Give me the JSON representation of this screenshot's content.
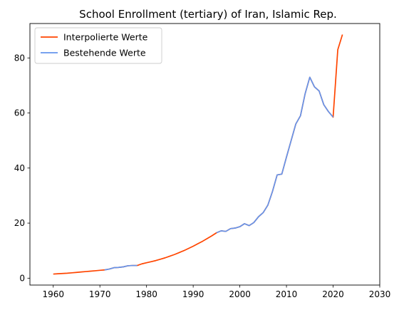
{
  "chart_data": {
    "type": "line",
    "title": "School Enrollment (tertiary) of Iran, Islamic Rep.",
    "xlabel": "",
    "ylabel": "",
    "xlim": [
      1955,
      2030
    ],
    "ylim": [
      -2.5,
      92.5
    ],
    "xticks": [
      1960,
      1970,
      1980,
      1990,
      2000,
      2010,
      2020,
      2030
    ],
    "yticks": [
      0,
      20,
      40,
      60,
      80
    ],
    "grid": false,
    "legend_position": "top-left",
    "series": [
      {
        "name": "Interpolierte Werte",
        "color": "#ff4500",
        "x": [
          1960,
          1961,
          1962,
          1963,
          1964,
          1965,
          1966,
          1967,
          1968,
          1969,
          1970,
          1971,
          1972,
          1973,
          1974,
          1975,
          1976,
          1977,
          1978,
          1979,
          1980,
          1981,
          1982,
          1983,
          1984,
          1985,
          1986,
          1987,
          1988,
          1989,
          1990,
          1991,
          1992,
          1993,
          1994,
          1995,
          1996,
          1997,
          1998,
          1999,
          2000,
          2001,
          2002,
          2003,
          2004,
          2005,
          2006,
          2007,
          2008,
          2009,
          2010,
          2011,
          2012,
          2013,
          2014,
          2015,
          2016,
          2017,
          2018,
          2019,
          2020,
          2021,
          2022
        ],
        "y": [
          1.5,
          1.6,
          1.7,
          1.8,
          1.95,
          2.1,
          2.25,
          2.4,
          2.55,
          2.7,
          2.85,
          3.0,
          3.3,
          3.8,
          3.9,
          4.1,
          4.5,
          4.6,
          4.6,
          5.2,
          5.6,
          6.0,
          6.4,
          6.9,
          7.4,
          8.0,
          8.6,
          9.3,
          10.0,
          10.8,
          11.6,
          12.5,
          13.4,
          14.4,
          15.4,
          16.5,
          17.2,
          17.0,
          18.0,
          18.2,
          18.7,
          19.8,
          19.1,
          20.2,
          22.3,
          23.8,
          26.5,
          31.5,
          37.5,
          37.8,
          44.0,
          50.0,
          56.0,
          59.0,
          67.0,
          73.0,
          69.5,
          68.0,
          63.0,
          60.5,
          58.5,
          83.0,
          88.5
        ]
      },
      {
        "name": "Bestehende Werte",
        "color": "#6495ed",
        "x": [
          1971,
          1972,
          1973,
          1974,
          1975,
          1976,
          1977,
          1978,
          1995,
          1996,
          1997,
          1998,
          1999,
          2000,
          2001,
          2002,
          2003,
          2004,
          2005,
          2006,
          2007,
          2008,
          2009,
          2010,
          2011,
          2012,
          2013,
          2014,
          2015,
          2016,
          2017,
          2018,
          2019,
          2020
        ],
        "y": [
          3.0,
          3.3,
          3.8,
          3.9,
          4.1,
          4.5,
          4.6,
          4.6,
          16.5,
          17.2,
          17.0,
          18.0,
          18.2,
          18.7,
          19.8,
          19.1,
          20.2,
          22.3,
          23.8,
          26.5,
          31.5,
          37.5,
          37.8,
          44.0,
          50.0,
          56.0,
          59.0,
          67.0,
          73.0,
          69.5,
          68.0,
          63.0,
          60.5,
          58.5
        ]
      }
    ]
  }
}
